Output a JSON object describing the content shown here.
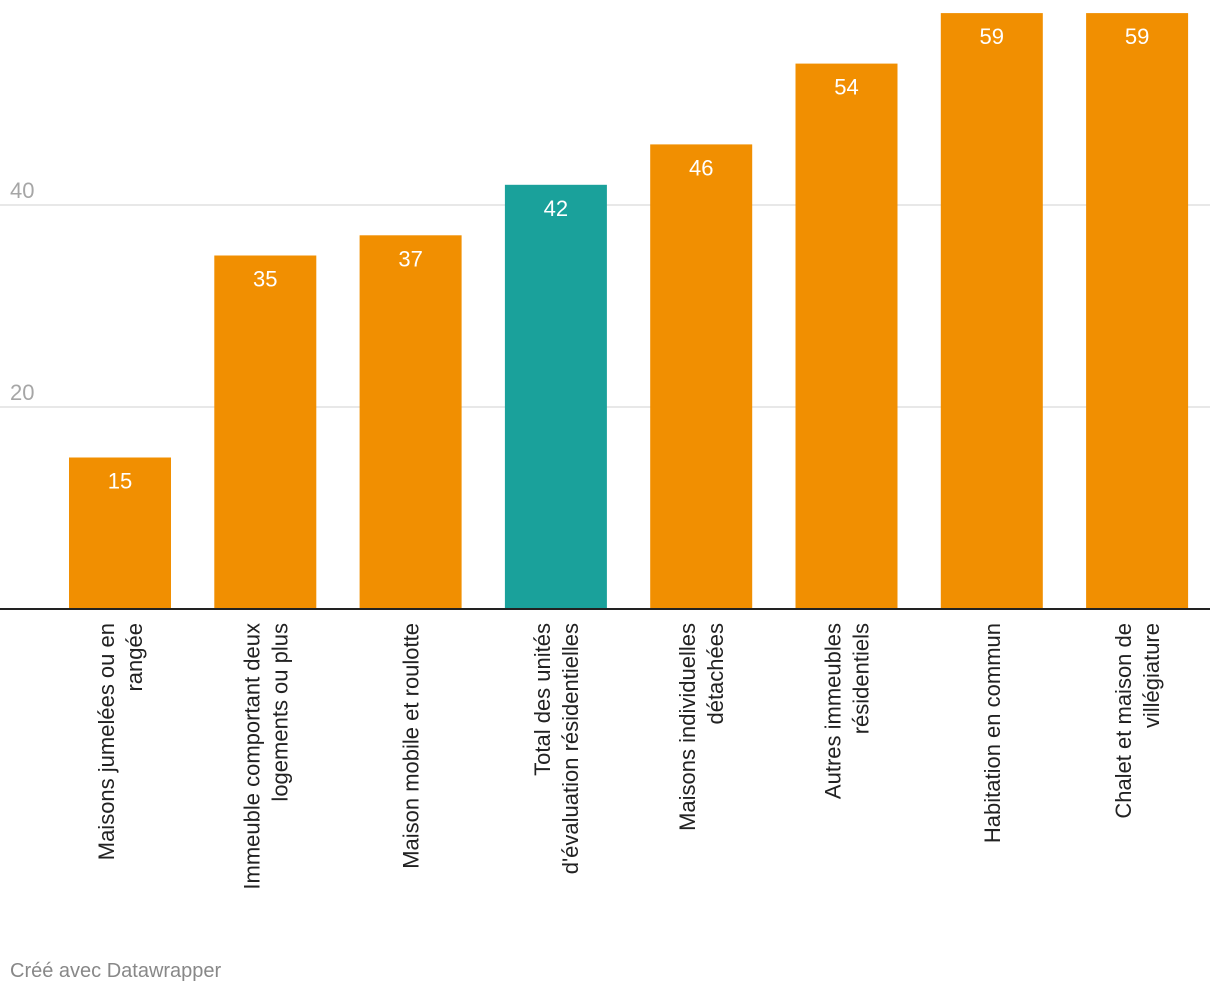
{
  "chart_data": {
    "type": "bar",
    "categories": [
      [
        "Maisons jumelées ou en",
        "rangée"
      ],
      [
        "Immeuble comportant deux",
        "logements ou plus"
      ],
      [
        "Maison mobile et roulotte"
      ],
      [
        "Total des unités",
        "d'évaluation résidentielles"
      ],
      [
        "Maisons individuelles",
        "détachées"
      ],
      [
        "Autres immeubles",
        "résidentiels"
      ],
      [
        "Habitation en commun"
      ],
      [
        "Chalet et maison de",
        "villégiature"
      ]
    ],
    "values": [
      15,
      35,
      37,
      42,
      46,
      54,
      59,
      59
    ],
    "value_labels": [
      "15",
      "35",
      "37",
      "42",
      "46",
      "54",
      "59",
      "59"
    ],
    "highlight_index": 3,
    "ylim": [
      0,
      60
    ],
    "yticks": [
      20,
      40
    ],
    "ytick_labels": [
      "20",
      "40"
    ],
    "grid": true,
    "colors": {
      "bar": "#f18f01",
      "highlight": "#1aa19b",
      "grid": "#e0e0e0",
      "axis": "#222222",
      "tick_label": "#a6a6a6",
      "value_label": "#ffffff",
      "category_label": "#222222"
    }
  },
  "footer": {
    "credit": "Créé avec Datawrapper"
  }
}
